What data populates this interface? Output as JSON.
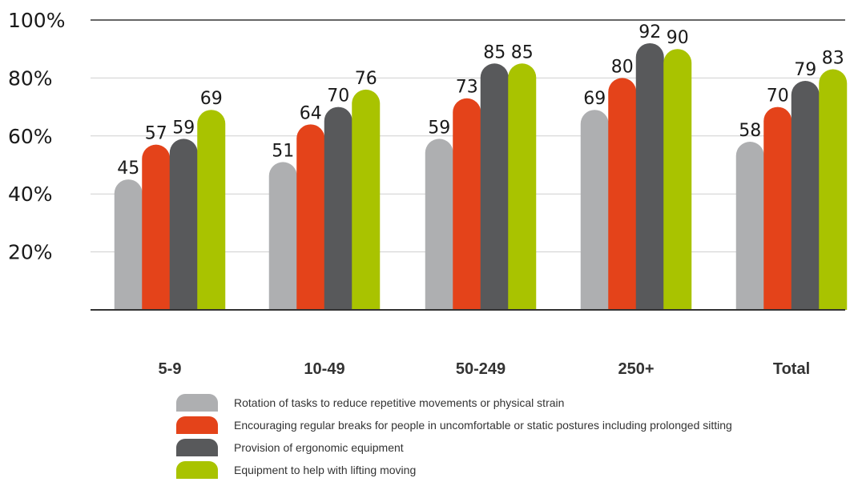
{
  "chart_data": {
    "type": "bar",
    "categories": [
      "5-9",
      "10-49",
      "50-249",
      "250+",
      "Total"
    ],
    "series": [
      {
        "name": "Rotation of tasks to reduce repetitive movements or physical strain",
        "color": "#aeafb1",
        "values": [
          45,
          51,
          59,
          69,
          58
        ]
      },
      {
        "name": "Encouraging regular breaks for people in uncomfortable or static postures including prolonged sitting",
        "color": "#e4431a",
        "values": [
          57,
          64,
          73,
          80,
          70
        ]
      },
      {
        "name": "Provision of ergonomic equipment",
        "color": "#58595b",
        "values": [
          59,
          70,
          85,
          92,
          79
        ]
      },
      {
        "name": "Equipment to help with lifting moving",
        "color": "#a9c300",
        "values": [
          69,
          76,
          85,
          90,
          83
        ]
      }
    ],
    "y_ticks": [
      "20%",
      "40%",
      "60%",
      "80%",
      "100%"
    ],
    "y_tick_values": [
      20,
      40,
      60,
      80,
      100
    ],
    "ylim": [
      0,
      100
    ],
    "grid": true,
    "legend_position": "bottom"
  }
}
